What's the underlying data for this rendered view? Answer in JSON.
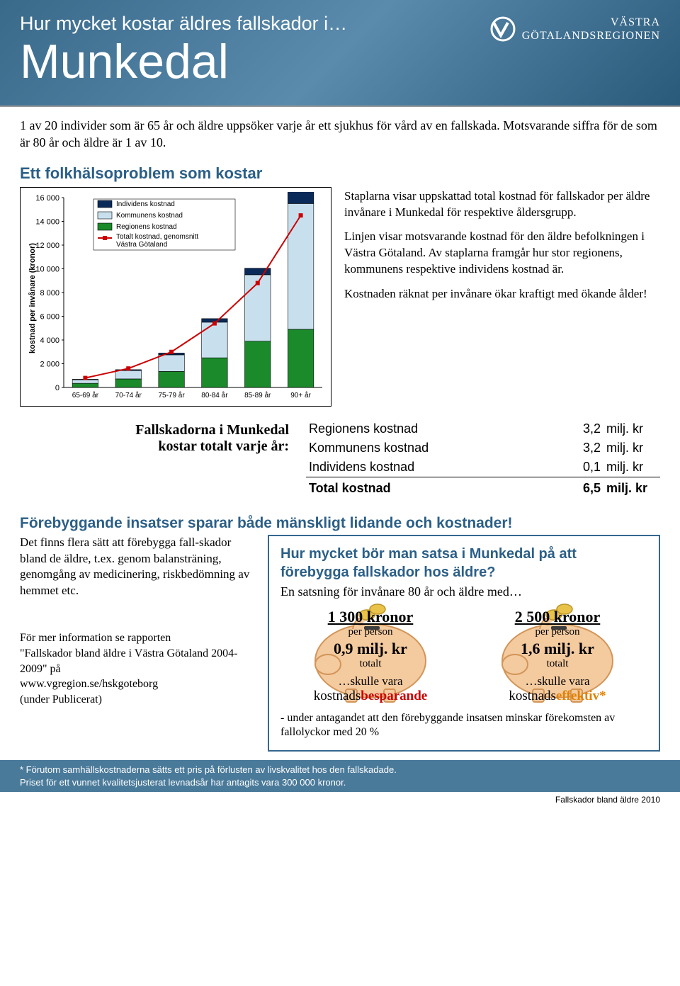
{
  "header": {
    "title_small": "Hur mycket kostar äldres fallskador i…",
    "title_big": "Munkedal",
    "logo_line1": "VÄSTRA",
    "logo_line2": "GÖTALANDSREGIONEN"
  },
  "intro": "1 av 20 individer som är 65 år och äldre uppsöker varje år ett sjukhus för vård av en fallskada. Motsvarande siffra för de som är 80 år och äldre är 1 av 10.",
  "section1_title": "Ett folkhälsoproblem som kostar",
  "chart": {
    "type": "stacked-bar-with-line",
    "ylabel": "kostnad per invånare (kronor)",
    "categories": [
      "65-69 år",
      "70-74 år",
      "75-79 år",
      "80-84 år",
      "85-89 år",
      "90+ år"
    ],
    "series": [
      {
        "name": "Individens kostnad",
        "color": "#0a2a5a",
        "values": [
          40,
          80,
          150,
          300,
          550,
          1000
        ]
      },
      {
        "name": "Kommunens kostnad",
        "color": "#c8e0ee",
        "values": [
          300,
          700,
          1400,
          3000,
          5600,
          10600
        ]
      },
      {
        "name": "Regionens kostnad",
        "color": "#1a8a2a",
        "values": [
          350,
          720,
          1350,
          2500,
          3900,
          4900
        ]
      }
    ],
    "line": {
      "name": "Totalt kostnad, genomsnitt Västra Götaland",
      "color": "#cc0000",
      "values": [
        800,
        1600,
        3000,
        5400,
        8800,
        14500
      ]
    },
    "ylim": [
      0,
      16000
    ],
    "ytick_step": 2000,
    "legend_items": [
      {
        "label": "Individens kostnad",
        "color": "#0a2a5a",
        "type": "box"
      },
      {
        "label": "Kommunens kostnad",
        "color": "#c8e0ee",
        "type": "box"
      },
      {
        "label": "Regionens kostnad",
        "color": "#1a8a2a",
        "type": "box"
      },
      {
        "label": "Totalt kostnad, genomsnitt Västra Götaland",
        "color": "#cc0000",
        "type": "line"
      }
    ],
    "bg": "#ffffff",
    "border": "#000000",
    "grid": "#cccccc",
    "font_size_axis": 11
  },
  "chart_desc": {
    "p1": "Staplarna visar uppskattad total kostnad för fallskador per äldre invånare i Munkedal för respektive åldersgrupp.",
    "p2": "Linjen visar motsvarande kostnad för den äldre befolkningen i Västra Götaland. Av staplarna framgår hur stor regionens, kommunens respektive individens kostnad är.",
    "p3": "Kostnaden räknat per invånare ökar kraftigt med ökande ålder!"
  },
  "costs": {
    "caption_l1": "Fallskadorna i Munkedal",
    "caption_l2": "kostar totalt varje år:",
    "rows": [
      {
        "label": "Regionens kostnad",
        "value": "3,2",
        "unit": "milj. kr"
      },
      {
        "label": "Kommunens kostnad",
        "value": "3,2",
        "unit": "milj. kr"
      },
      {
        "label": "Individens kostnad",
        "value": "0,1",
        "unit": "milj. kr"
      }
    ],
    "total": {
      "label": "Total kostnad",
      "value": "6,5",
      "unit": "milj. kr"
    }
  },
  "prevent": {
    "title": "Förebyggande insatser sparar både mänskligt lidande och kostnader!",
    "left_text": "Det finns flera sätt att förebygga fall-skador bland de äldre, t.ex. genom balansträning, genomgång av medicinering, riskbedömning av hemmet etc.",
    "box_title": "Hur mycket bör man satsa i Munkedal på att förebygga fallskador hos äldre?",
    "box_sub": "En satsning för invånare 80 år och äldre med…"
  },
  "report": {
    "l1": "För mer information se rapporten",
    "l2": "\"Fallskador bland äldre i Västra Götaland 2004-2009\" på",
    "l3": "www.vgregion.se/hskgoteborg",
    "l4": "(under Publicerat)"
  },
  "piggy": {
    "fill": "#f4c89a",
    "stroke": "#d09050",
    "coin": "#e8c040",
    "items": [
      {
        "amount": "1 300 kronor",
        "per": "per person",
        "total": "0,9 milj. kr",
        "totlbl": "totalt",
        "skulle": "…skulle vara",
        "kw_prefix": "kostnads",
        "kw_highlight": "besparande",
        "kw_class": "red"
      },
      {
        "amount": "2 500 kronor",
        "per": "per person",
        "total": "1,6 milj. kr",
        "totlbl": "totalt",
        "skulle": "…skulle vara",
        "kw_prefix": "kostnads",
        "kw_highlight": "effektiv*",
        "kw_class": "orange"
      }
    ],
    "footnote": "- under antagandet att den förebyggande insatsen minskar förekomsten av fallolyckor med 20 %"
  },
  "footnote_bar": {
    "l1": "* Förutom samhällskostnaderna sätts ett pris på förlusten av livskvalitet hos den fallskadade.",
    "l2": "Priset för ett vunnet kvalitetsjusterat levnadsår har antagits vara 300 000 kronor."
  },
  "page_foot": "Fallskador bland äldre 2010"
}
